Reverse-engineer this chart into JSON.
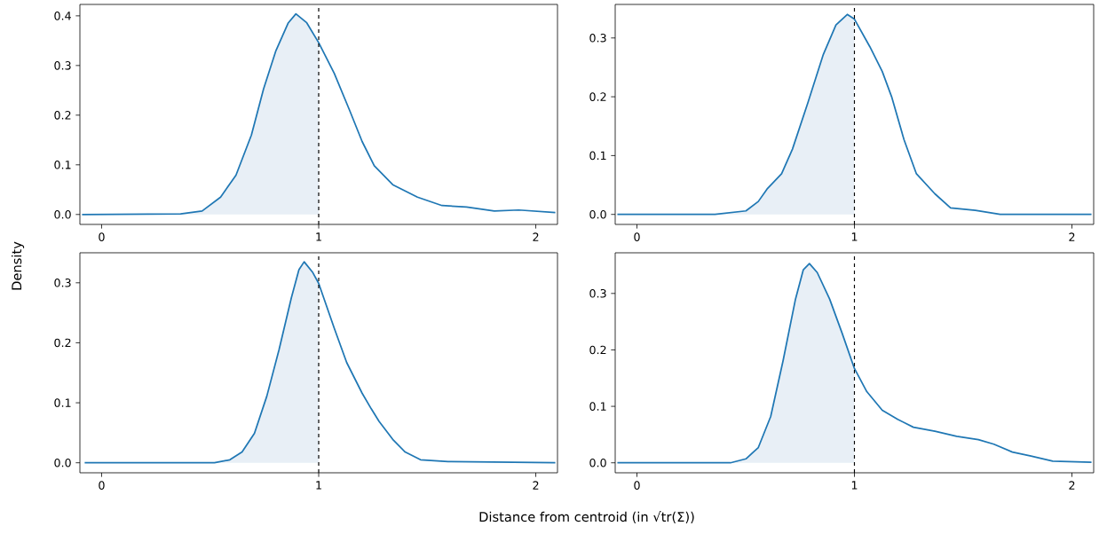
{
  "chart_data": [
    {
      "type": "line",
      "ylabel": "Density",
      "xlim": [
        -0.1,
        2.1
      ],
      "ylim": [
        -0.02,
        0.423
      ],
      "xticks": [
        0,
        1,
        2
      ],
      "yticks": [
        {
          "value": 0,
          "label": "0.0"
        },
        {
          "value": 0.1,
          "label": "0.1"
        },
        {
          "value": 0.2,
          "label": "0.2"
        },
        {
          "value": 0.3,
          "label": "0.3"
        },
        {
          "value": 0.4,
          "label": "0.4"
        }
      ],
      "ref_lines": [
        {
          "axis": "x",
          "value": 1,
          "color": "#000000",
          "line_style": "dashed"
        }
      ],
      "series": [
        {
          "type": "area",
          "color": "#e8eff6",
          "x": [
            -0.09,
            0.364,
            0.463,
            0.548,
            0.619,
            0.69,
            0.746,
            0.803,
            0.86,
            0.895,
            0.945,
            1.0
          ],
          "values": [
            0,
            0.001,
            0.007,
            0.035,
            0.079,
            0.16,
            0.253,
            0.33,
            0.386,
            0.404,
            0.386,
            0.346
          ]
        },
        {
          "type": "line",
          "color": "#1f77b4",
          "x": [
            -0.09,
            0.364,
            0.463,
            0.548,
            0.619,
            0.69,
            0.746,
            0.803,
            0.86,
            0.895,
            0.945,
            1.0,
            1.072,
            1.143,
            1.2,
            1.256,
            1.341,
            1.455,
            1.568,
            1.681,
            1.809,
            1.922,
            2.09
          ],
          "values": [
            0,
            0.001,
            0.007,
            0.035,
            0.079,
            0.16,
            0.253,
            0.33,
            0.386,
            0.404,
            0.386,
            0.346,
            0.284,
            0.209,
            0.147,
            0.098,
            0.06,
            0.035,
            0.018,
            0.015,
            0.007,
            0.009,
            0.004
          ]
        }
      ]
    },
    {
      "type": "line",
      "xlim": [
        -0.1,
        2.1
      ],
      "ylim": [
        -0.017,
        0.357
      ],
      "xticks": [
        0,
        1,
        2
      ],
      "yticks": [
        {
          "value": 0,
          "label": "0.0"
        },
        {
          "value": 0.1,
          "label": "0.1"
        },
        {
          "value": 0.2,
          "label": "0.2"
        },
        {
          "value": 0.3,
          "label": "0.3"
        }
      ],
      "ref_lines": [
        {
          "axis": "x",
          "value": 1,
          "color": "#000000",
          "line_style": "dashed"
        }
      ],
      "series": [
        {
          "type": "area",
          "color": "#e8eff6",
          "x": [
            -0.09,
            0.359,
            0.501,
            0.558,
            0.598,
            0.665,
            0.715,
            0.786,
            0.857,
            0.915,
            0.967,
            1.0
          ],
          "values": [
            0,
            0,
            0.006,
            0.022,
            0.043,
            0.069,
            0.111,
            0.19,
            0.272,
            0.322,
            0.34,
            0.332
          ]
        },
        {
          "type": "line",
          "color": "#1f77b4",
          "x": [
            -0.09,
            0.359,
            0.501,
            0.558,
            0.598,
            0.665,
            0.715,
            0.786,
            0.857,
            0.915,
            0.967,
            1.0,
            1.071,
            1.128,
            1.171,
            1.228,
            1.285,
            1.37,
            1.442,
            1.556,
            1.67,
            2.09
          ],
          "values": [
            0,
            0,
            0.006,
            0.022,
            0.043,
            0.069,
            0.111,
            0.19,
            0.272,
            0.322,
            0.34,
            0.332,
            0.285,
            0.243,
            0.2,
            0.127,
            0.069,
            0.035,
            0.011,
            0.007,
            0,
            0
          ]
        }
      ]
    },
    {
      "type": "line",
      "xlabel": "Distance from centroid (in √tr(Σ))",
      "xlim": [
        -0.1,
        2.1
      ],
      "ylim": [
        -0.0167,
        0.35
      ],
      "xticks": [
        0,
        1,
        2
      ],
      "yticks": [
        {
          "value": 0,
          "label": "0.0"
        },
        {
          "value": 0.1,
          "label": "0.1"
        },
        {
          "value": 0.2,
          "label": "0.2"
        },
        {
          "value": 0.3,
          "label": "0.3"
        }
      ],
      "ref_lines": [
        {
          "axis": "x",
          "value": 1,
          "color": "#000000",
          "line_style": "dashed"
        }
      ],
      "series": [
        {
          "type": "area",
          "color": "#e8eff6",
          "x": [
            -0.078,
            0.52,
            0.591,
            0.647,
            0.704,
            0.761,
            0.817,
            0.874,
            0.909,
            0.933,
            0.973,
            1.0
          ],
          "values": [
            0,
            0,
            0.005,
            0.018,
            0.049,
            0.111,
            0.188,
            0.275,
            0.322,
            0.335,
            0.317,
            0.299
          ]
        },
        {
          "type": "line",
          "color": "#1f77b4",
          "x": [
            -0.078,
            0.52,
            0.591,
            0.647,
            0.704,
            0.761,
            0.817,
            0.874,
            0.909,
            0.933,
            0.973,
            1.0,
            1.072,
            1.129,
            1.2,
            1.242,
            1.278,
            1.341,
            1.398,
            1.469,
            1.596,
            2.09
          ],
          "values": [
            0,
            0,
            0.005,
            0.018,
            0.049,
            0.111,
            0.188,
            0.275,
            0.322,
            0.335,
            0.317,
            0.299,
            0.224,
            0.167,
            0.116,
            0.09,
            0.069,
            0.039,
            0.018,
            0.005,
            0.002,
            0
          ]
        }
      ]
    },
    {
      "type": "line",
      "xlim": [
        -0.1,
        2.1
      ],
      "ylim": [
        -0.0177,
        0.372
      ],
      "xticks": [
        0,
        1,
        2
      ],
      "yticks": [
        {
          "value": 0,
          "label": "0.0"
        },
        {
          "value": 0.1,
          "label": "0.1"
        },
        {
          "value": 0.2,
          "label": "0.2"
        },
        {
          "value": 0.3,
          "label": "0.3"
        }
      ],
      "ref_lines": [
        {
          "axis": "x",
          "value": 1,
          "color": "#000000",
          "line_style": "dashed"
        }
      ],
      "series": [
        {
          "type": "area",
          "color": "#e8eff6",
          "x": [
            -0.09,
            0.43,
            0.501,
            0.558,
            0.615,
            0.672,
            0.729,
            0.765,
            0.793,
            0.829,
            0.886,
            0.943,
            1.0
          ],
          "values": [
            0,
            0,
            0.007,
            0.027,
            0.082,
            0.181,
            0.29,
            0.342,
            0.353,
            0.337,
            0.29,
            0.23,
            0.167
          ]
        },
        {
          "type": "line",
          "color": "#1f77b4",
          "x": [
            -0.09,
            0.43,
            0.501,
            0.558,
            0.615,
            0.672,
            0.729,
            0.765,
            0.793,
            0.829,
            0.886,
            0.943,
            1.0,
            1.057,
            1.128,
            1.199,
            1.271,
            1.37,
            1.47,
            1.57,
            1.641,
            1.726,
            1.812,
            1.912,
            2.09
          ],
          "values": [
            0,
            0,
            0.007,
            0.027,
            0.082,
            0.181,
            0.29,
            0.342,
            0.353,
            0.337,
            0.29,
            0.23,
            0.167,
            0.126,
            0.093,
            0.077,
            0.063,
            0.056,
            0.047,
            0.041,
            0.033,
            0.019,
            0.012,
            0.003,
            0.001
          ]
        }
      ]
    }
  ]
}
